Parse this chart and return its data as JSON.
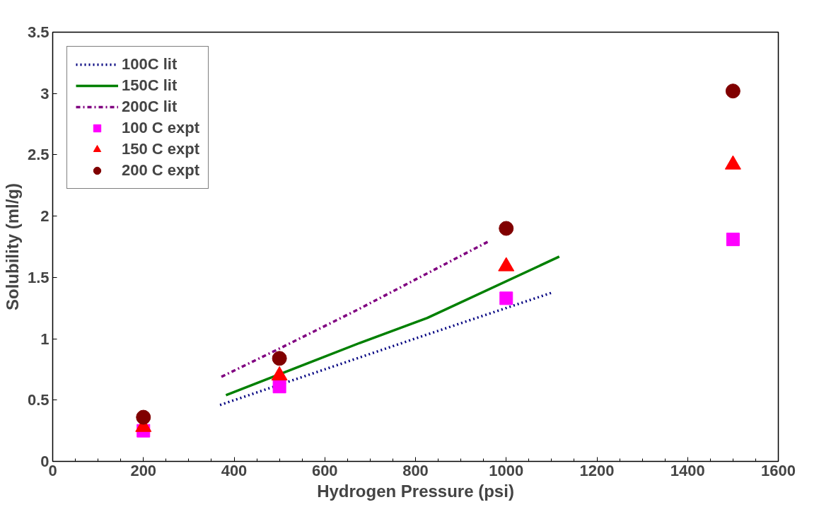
{
  "chart_data": {
    "type": "line",
    "xlabel": "Hydrogen Pressure (psi)",
    "ylabel": "Solubility (ml/g)",
    "xlim": [
      0,
      1600
    ],
    "xticks": [
      0,
      200,
      400,
      600,
      800,
      1000,
      1200,
      1400,
      1600
    ],
    "ylim": [
      0,
      3.5
    ],
    "yticks": [
      0,
      0.5,
      1,
      1.5,
      2,
      2.5,
      3,
      3.5
    ],
    "grid": false,
    "legend": "top left",
    "series": [
      {
        "name": "100C lit",
        "line_style": "dotted",
        "marker": "none",
        "color": "#000080",
        "x": [
          369,
          806,
          1104
        ],
        "values": [
          0.46,
          1.01,
          1.38
        ]
      },
      {
        "name": "150C lit",
        "line_style": "solid",
        "marker": "none",
        "color": "#008000",
        "x": [
          382,
          680,
          826,
          1117
        ],
        "values": [
          0.54,
          0.97,
          1.17,
          1.67
        ]
      },
      {
        "name": "200C lit",
        "line_style": "dashdot",
        "marker": "none",
        "color": "#800080",
        "x": [
          372,
          500,
          674,
          959
        ],
        "values": [
          0.69,
          0.92,
          1.24,
          1.79
        ]
      },
      {
        "name": "100 C expt",
        "type": "scatter",
        "marker": "square",
        "color": "#ff00ff",
        "x": [
          200,
          500,
          1000,
          1500
        ],
        "values": [
          0.25,
          0.61,
          1.33,
          1.81
        ]
      },
      {
        "name": "150 C expt",
        "type": "scatter",
        "marker": "triangle",
        "color": "#ff0000",
        "x": [
          200,
          500,
          1000,
          1500
        ],
        "values": [
          0.28,
          0.7,
          1.59,
          2.42
        ]
      },
      {
        "name": "200 C expt",
        "type": "scatter",
        "marker": "circle",
        "color": "#800000",
        "x": [
          200,
          500,
          1000,
          1500
        ],
        "values": [
          0.36,
          0.84,
          1.9,
          3.02
        ]
      }
    ]
  }
}
